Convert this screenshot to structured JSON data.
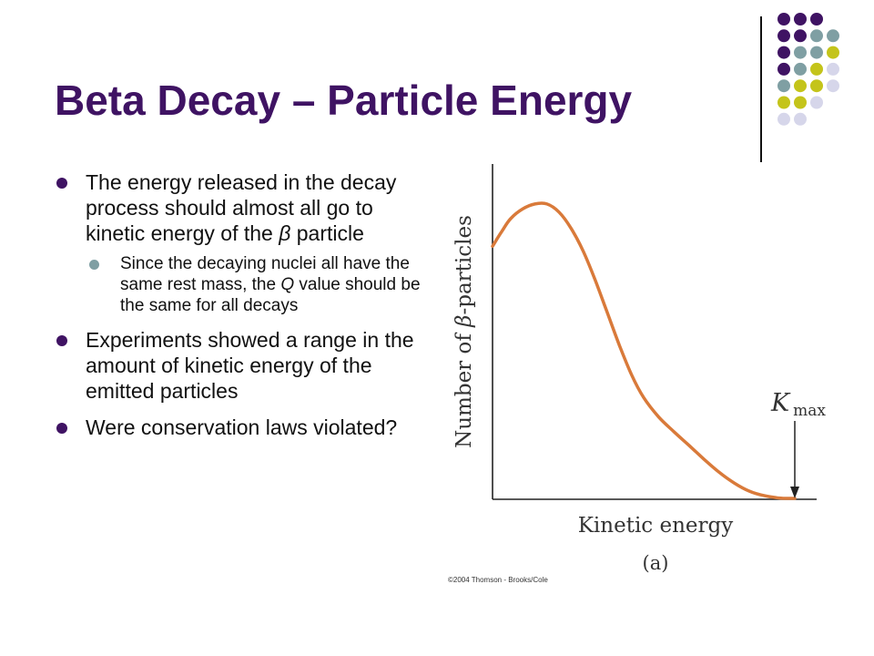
{
  "slide": {
    "title": "Beta Decay – Particle Energy",
    "bullets": [
      {
        "text": "The energy released in the decay process should almost all go to kinetic energy of the ",
        "emph": "β",
        "after": " particle",
        "sub": [
          {
            "before": "Since the decaying nuclei all have the same rest mass, the ",
            "emph": "Q",
            "after": " value should be the same for all decays"
          }
        ]
      },
      {
        "text": "Experiments showed a range in the amount of kinetic energy of the emitted particles"
      },
      {
        "text": "Were conservation laws violated?"
      }
    ]
  },
  "decor": {
    "colors": {
      "purple": "#3f1363",
      "teal": "#7f9fa3",
      "olive": "#c4c41a",
      "lavender": "#d6d6ea"
    },
    "grid": [
      [
        "purple",
        "purple",
        "purple",
        null
      ],
      [
        "purple",
        "purple",
        "teal",
        "teal"
      ],
      [
        "purple",
        "teal",
        "teal",
        "olive"
      ],
      [
        "purple",
        "teal",
        "olive",
        "lavender"
      ],
      [
        "teal",
        "olive",
        "olive",
        "lavender"
      ],
      [
        "olive",
        "olive",
        "lavender",
        null
      ],
      [
        "lavender",
        "lavender",
        null,
        null
      ]
    ]
  },
  "chart_data": {
    "type": "line",
    "title": "",
    "panel_label": "(a)",
    "xlabel": "Kinetic energy",
    "ylabel_prefix": "Number of ",
    "ylabel_symbol": "β",
    "ylabel_suffix": "-particles",
    "annotation": {
      "symbol": "K",
      "subscript": "max",
      "x": 1.0
    },
    "credit": "©2004 Thomson - Brooks/Cole",
    "xlim": [
      0,
      1
    ],
    "ylim": [
      0,
      1
    ],
    "x": [
      0.0,
      0.03,
      0.06,
      0.1,
      0.14,
      0.18,
      0.22,
      0.26,
      0.3,
      0.34,
      0.38,
      0.42,
      0.46,
      0.5,
      0.55,
      0.6,
      0.65,
      0.7,
      0.75,
      0.8,
      0.85,
      0.9,
      0.94,
      0.97,
      1.0
    ],
    "y": [
      0.775,
      0.82,
      0.86,
      0.89,
      0.905,
      0.905,
      0.88,
      0.83,
      0.76,
      0.67,
      0.57,
      0.47,
      0.38,
      0.31,
      0.25,
      0.205,
      0.163,
      0.12,
      0.08,
      0.047,
      0.022,
      0.008,
      0.002,
      0.0,
      0.0
    ],
    "color": "#d97a3a"
  }
}
